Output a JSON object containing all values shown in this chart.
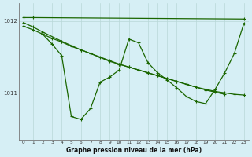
{
  "bg_color": "#d6eff5",
  "grid_color": "#b8d8d8",
  "line_color": "#1a6600",
  "title": "Graphe pression niveau de la mer (hPa)",
  "xlim": [
    -0.5,
    23.5
  ],
  "ylim": [
    1010.35,
    1012.25
  ],
  "yticks": [
    1011.0,
    1012.0
  ],
  "xticks": [
    0,
    1,
    2,
    3,
    4,
    5,
    6,
    7,
    8,
    9,
    10,
    11,
    12,
    13,
    14,
    15,
    16,
    17,
    18,
    19,
    20,
    21,
    22,
    23
  ],
  "series": [
    {
      "x": [
        0,
        1,
        23
      ],
      "y": [
        1012.05,
        1012.05,
        1012.03
      ]
    },
    {
      "x": [
        0,
        1,
        2,
        3,
        4,
        5,
        6,
        7,
        8,
        9,
        10,
        11,
        12,
        13,
        14,
        15,
        16,
        17,
        18,
        19,
        20,
        21,
        22,
        23
      ],
      "y": [
        1011.93,
        1011.88,
        1011.82,
        1011.76,
        1011.71,
        1011.65,
        1011.6,
        1011.55,
        1011.5,
        1011.45,
        1011.4,
        1011.36,
        1011.32,
        1011.28,
        1011.24,
        1011.2,
        1011.16,
        1011.12,
        1011.08,
        1011.05,
        1011.02,
        1011.0,
        1010.98,
        1010.97
      ]
    },
    {
      "x": [
        2,
        3,
        4,
        5,
        6,
        7,
        8,
        9,
        10,
        11,
        12,
        13,
        14,
        15,
        16,
        17,
        18,
        19,
        20,
        21,
        22,
        23
      ],
      "y": [
        1011.82,
        1011.68,
        1011.52,
        1010.67,
        1010.63,
        1010.78,
        1011.15,
        1011.22,
        1011.32,
        1011.75,
        1011.7,
        1011.42,
        1011.28,
        1011.18,
        1011.07,
        1010.95,
        1010.88,
        1010.85,
        1011.05,
        1011.28,
        1011.55,
        1011.97
      ]
    },
    {
      "x": [
        0,
        1,
        2,
        4,
        5,
        6,
        7,
        9,
        10,
        11,
        12,
        13,
        14,
        15,
        16,
        17,
        18,
        19,
        20,
        21
      ],
      "y": [
        1011.98,
        1011.92,
        1011.85,
        1011.72,
        1011.66,
        1011.6,
        1011.55,
        1011.44,
        1011.4,
        1011.36,
        1011.32,
        1011.28,
        1011.24,
        1011.2,
        1011.16,
        1011.12,
        1011.08,
        1011.04,
        1011.01,
        1010.98
      ]
    }
  ]
}
